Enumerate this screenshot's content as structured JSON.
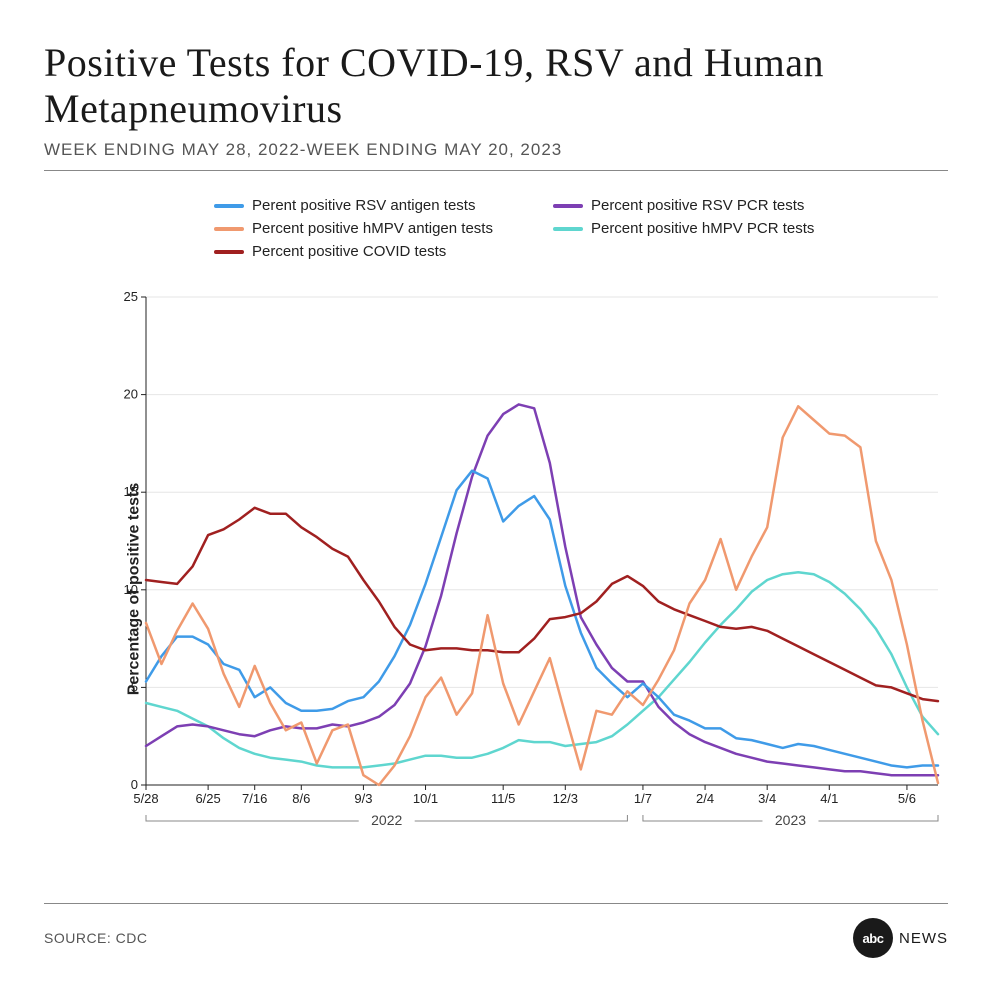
{
  "title": "Positive Tests for COVID-19, RSV and Human Metapneumovirus",
  "subtitle": "WEEK ENDING MAY 28, 2022-WEEK ENDING MAY 20, 2023",
  "source_label": "SOURCE: CDC",
  "logo": {
    "disc": "abc",
    "text": "NEWS"
  },
  "chart": {
    "type": "line",
    "ylabel": "Percentage of positive tests",
    "ylim": [
      0,
      25
    ],
    "yticks": [
      0,
      5,
      10,
      15,
      20,
      25
    ],
    "xticks": [
      "5/28",
      "6/25",
      "7/16",
      "8/6",
      "9/3",
      "10/1",
      "11/5",
      "12/3",
      "1/7",
      "2/4",
      "3/4",
      "4/1",
      "5/6"
    ],
    "xtick_idx": [
      0,
      4,
      7,
      10,
      14,
      18,
      23,
      27,
      32,
      36,
      40,
      44,
      49
    ],
    "n_points": 52,
    "year_groups": [
      {
        "label": "2022",
        "from_idx": 0,
        "to_idx": 31
      },
      {
        "label": "2023",
        "from_idx": 32,
        "to_idx": 51
      }
    ],
    "background_color": "#ffffff",
    "grid_color": "#e6e6e6",
    "axis_color": "#222222",
    "line_width": 2.5,
    "title_fontsize": 40,
    "label_fontsize": 16,
    "tick_fontsize": 13,
    "legend_order": [
      "rsv_antigen",
      "rsv_pcr",
      "hmpv_antigen",
      "hmpv_pcr",
      "covid"
    ],
    "series": {
      "rsv_antigen": {
        "label": "Perent positive RSV antigen tests",
        "color": "#3f9be8",
        "values": [
          5.3,
          6.6,
          7.6,
          7.6,
          7.2,
          6.2,
          5.9,
          4.5,
          5.0,
          4.2,
          3.8,
          3.8,
          3.9,
          4.3,
          4.5,
          5.3,
          6.6,
          8.2,
          10.3,
          12.7,
          15.1,
          16.1,
          15.7,
          13.5,
          14.3,
          14.8,
          13.6,
          10.2,
          7.8,
          6.0,
          5.2,
          4.5,
          5.2,
          4.5,
          3.6,
          3.3,
          2.9,
          2.9,
          2.4,
          2.3,
          2.1,
          1.9,
          2.1,
          2.0,
          1.8,
          1.6,
          1.4,
          1.2,
          1.0,
          0.9,
          1.0,
          1.0
        ]
      },
      "rsv_pcr": {
        "label": "Percent positive RSV PCR tests",
        "color": "#7d3fb3",
        "values": [
          2.0,
          2.5,
          3.0,
          3.1,
          3.0,
          2.8,
          2.6,
          2.5,
          2.8,
          3.0,
          2.9,
          2.9,
          3.1,
          3.0,
          3.2,
          3.5,
          4.1,
          5.2,
          7.1,
          9.7,
          12.9,
          15.8,
          17.9,
          19.0,
          19.5,
          19.3,
          16.5,
          12.2,
          8.6,
          7.2,
          6.0,
          5.3,
          5.3,
          4.0,
          3.2,
          2.6,
          2.2,
          1.9,
          1.6,
          1.4,
          1.2,
          1.1,
          1.0,
          0.9,
          0.8,
          0.7,
          0.7,
          0.6,
          0.5,
          0.5,
          0.5,
          0.5
        ]
      },
      "hmpv_antigen": {
        "label": "Percent positive hMPV antigen tests",
        "color": "#f0996f",
        "values": [
          8.3,
          6.2,
          7.9,
          9.3,
          8.0,
          5.7,
          4.0,
          6.1,
          4.2,
          2.8,
          3.2,
          1.1,
          2.8,
          3.1,
          0.5,
          0.0,
          1.0,
          2.5,
          4.5,
          5.5,
          3.6,
          4.7,
          8.7,
          5.2,
          3.1,
          4.8,
          6.5,
          3.6,
          0.8,
          3.8,
          3.6,
          4.8,
          4.1,
          5.4,
          6.9,
          9.3,
          10.5,
          12.6,
          10.0,
          11.7,
          13.2,
          17.8,
          19.4,
          18.7,
          18.0,
          17.9,
          17.3,
          12.5,
          10.5,
          7.2,
          3.3,
          0.1
        ]
      },
      "hmpv_pcr": {
        "label": "Percent positive hMPV PCR tests",
        "color": "#5fd6cf",
        "values": [
          4.2,
          4.0,
          3.8,
          3.4,
          3.0,
          2.4,
          1.9,
          1.6,
          1.4,
          1.3,
          1.2,
          1.0,
          0.9,
          0.9,
          0.9,
          1.0,
          1.1,
          1.3,
          1.5,
          1.5,
          1.4,
          1.4,
          1.6,
          1.9,
          2.3,
          2.2,
          2.2,
          2.0,
          2.1,
          2.2,
          2.5,
          3.1,
          3.8,
          4.5,
          5.4,
          6.3,
          7.3,
          8.2,
          9.0,
          9.9,
          10.5,
          10.8,
          10.9,
          10.8,
          10.4,
          9.8,
          9.0,
          8.0,
          6.7,
          5.0,
          3.5,
          2.6
        ]
      },
      "covid": {
        "label": "Percent positive COVID tests",
        "color": "#a02020",
        "values": [
          10.5,
          10.4,
          10.3,
          11.2,
          12.8,
          13.1,
          13.6,
          14.2,
          13.9,
          13.9,
          13.2,
          12.7,
          12.1,
          11.7,
          10.5,
          9.4,
          8.1,
          7.2,
          6.9,
          7.0,
          7.0,
          6.9,
          6.9,
          6.8,
          6.8,
          7.5,
          8.5,
          8.6,
          8.8,
          9.4,
          10.3,
          10.7,
          10.2,
          9.4,
          9.0,
          8.7,
          8.4,
          8.1,
          8.0,
          8.1,
          7.9,
          7.5,
          7.1,
          6.7,
          6.3,
          5.9,
          5.5,
          5.1,
          5.0,
          4.7,
          4.4,
          4.3
        ]
      }
    }
  }
}
